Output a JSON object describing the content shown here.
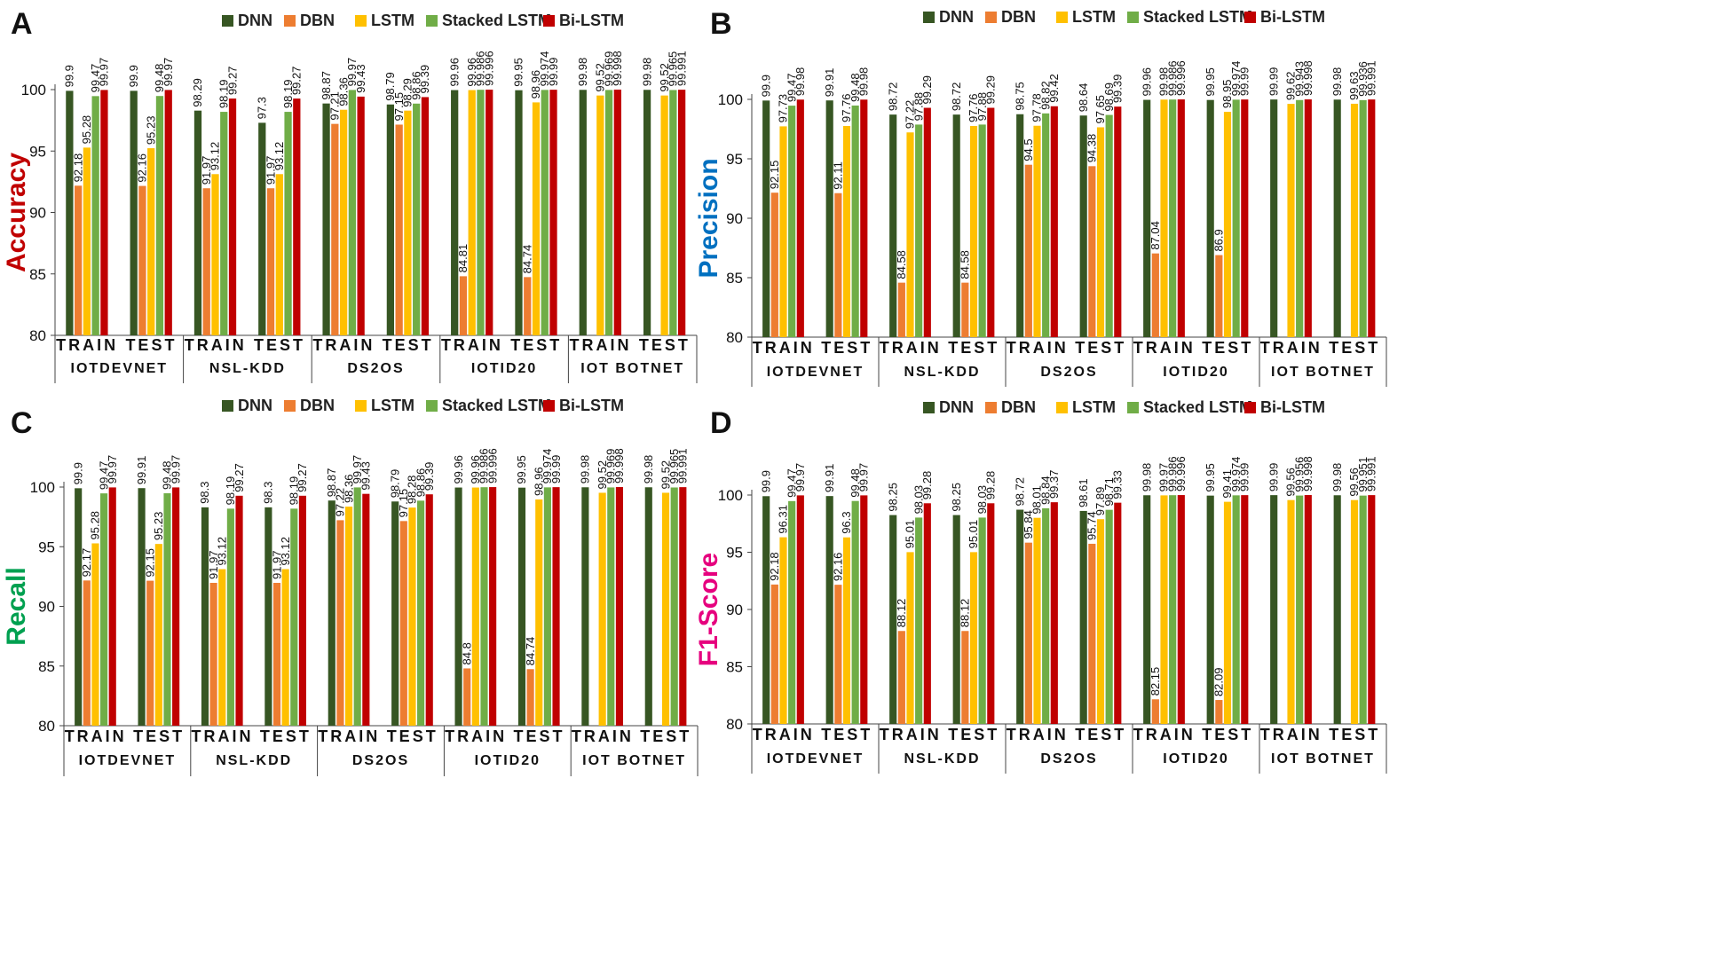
{
  "colors": {
    "DNN": "#375623",
    "DBN": "#ED7D31",
    "LSTM": "#FFC000",
    "Stacked LSTM": "#70AD47",
    "Bi-LSTM": "#C00000",
    "accuracy_label": "#C00000",
    "precision_label": "#0070C0",
    "recall_label": "#00A050",
    "f1_label": "#E6007E"
  },
  "chart_data": [
    {
      "panel": "A",
      "type": "bar",
      "ylabel": "Accuracy",
      "ylim": [
        80,
        100
      ],
      "yticks": [
        "80",
        "85",
        "90",
        "95",
        "100"
      ],
      "datasets": [
        "IOTDEVNET",
        "NSL-KDD",
        "DS2OS",
        "IOTID20",
        "IOT BOTNET"
      ],
      "splits": [
        "TRAIN",
        "TEST"
      ],
      "legend": [
        "DNN",
        "DBN",
        "LSTM",
        "Stacked LSTM",
        "Bi-LSTM"
      ],
      "series": [
        {
          "name": "DNN",
          "values": [
            99.9,
            99.9,
            98.29,
            97.3,
            98.87,
            98.79,
            99.96,
            99.95,
            99.98,
            99.98
          ],
          "labels": [
            "99.9",
            "99.9",
            "98.29",
            "97.3",
            "98.87",
            "98.79",
            "99.96",
            "99.95",
            "99.98",
            "99.98"
          ]
        },
        {
          "name": "DBN",
          "values": [
            92.18,
            92.16,
            91.97,
            91.97,
            97.21,
            97.15,
            84.81,
            84.74,
            null,
            null
          ],
          "labels": [
            "92.18",
            "92.16",
            "91.97",
            "91.97",
            "97.21",
            "97.15",
            "84.81",
            "84.74",
            "",
            ""
          ]
        },
        {
          "name": "LSTM",
          "values": [
            95.28,
            95.23,
            93.12,
            93.12,
            98.36,
            98.29,
            99.96,
            98.96,
            99.52,
            99.52
          ],
          "labels": [
            "95.28",
            "95.23",
            "93.12",
            "93.12",
            "98.36",
            "98.29",
            "99.96",
            "98.96",
            "99.52",
            "99.52"
          ]
        },
        {
          "name": "Stacked LSTM",
          "values": [
            99.47,
            99.48,
            98.19,
            98.19,
            99.97,
            98.86,
            99.986,
            99.974,
            99.969,
            99.965
          ],
          "labels": [
            "99.47",
            "99.48",
            "98.19",
            "98.19",
            "99.97",
            "98.86",
            "99.986",
            "99.974",
            "99.969",
            "99.965"
          ]
        },
        {
          "name": "Bi-LSTM",
          "values": [
            99.97,
            99.97,
            99.27,
            99.27,
            99.43,
            99.39,
            99.996,
            99.99,
            99.998,
            99.991
          ],
          "labels": [
            "99.97",
            "99.97",
            "99.27",
            "99.27",
            "99.43",
            "99.39",
            "99.996",
            "99.99",
            "99.998",
            "99.991"
          ]
        }
      ]
    },
    {
      "panel": "B",
      "type": "bar",
      "ylabel": "Precision",
      "ylim": [
        80,
        100
      ],
      "yticks": [
        "80",
        "85",
        "90",
        "95",
        "100"
      ],
      "datasets": [
        "IOTDEVNET",
        "NSL-KDD",
        "DS2OS",
        "IOTID20",
        "IOT BOTNET"
      ],
      "splits": [
        "TRAIN",
        "TEST"
      ],
      "legend": [
        "DNN",
        "DBN",
        "LSTM",
        "Stacked LSTM",
        "Bi-LSTM"
      ],
      "series": [
        {
          "name": "DNN",
          "values": [
            99.9,
            99.91,
            98.72,
            98.72,
            98.75,
            98.64,
            99.96,
            99.95,
            99.99,
            99.98
          ],
          "labels": [
            "99.9",
            "99.91",
            "98.72",
            "98.72",
            "98.75",
            "98.64",
            "99.96",
            "99.95",
            "99.99",
            "99.98"
          ]
        },
        {
          "name": "DBN",
          "values": [
            92.15,
            92.11,
            84.58,
            84.58,
            94.5,
            94.38,
            87.04,
            86.9,
            null,
            null
          ],
          "labels": [
            "92.15",
            "92.11",
            "84.58",
            "84.58",
            "94.5",
            "94.38",
            "87.04",
            "86.9",
            "",
            ""
          ]
        },
        {
          "name": "LSTM",
          "values": [
            97.73,
            97.76,
            97.22,
            97.76,
            97.78,
            97.65,
            99.98,
            98.95,
            99.62,
            99.63
          ],
          "labels": [
            "97.73",
            "97.76",
            "97.22",
            "97.76",
            "97.78",
            "97.65",
            "99.98",
            "98.95",
            "99.62",
            "99.63"
          ]
        },
        {
          "name": "Stacked LSTM",
          "values": [
            99.47,
            99.48,
            97.88,
            97.88,
            98.82,
            98.69,
            99.986,
            99.974,
            99.943,
            99.936
          ],
          "labels": [
            "99.47",
            "99.48",
            "97.88",
            "97.88",
            "98.82",
            "98.69",
            "99.986",
            "99.974",
            "99.943",
            "99.936"
          ]
        },
        {
          "name": "Bi-LSTM",
          "values": [
            99.98,
            99.98,
            99.29,
            99.29,
            99.42,
            99.39,
            99.996,
            99.99,
            99.998,
            99.991
          ],
          "labels": [
            "99.98",
            "99.98",
            "99.29",
            "99.29",
            "99.42",
            "99.39",
            "99.996",
            "99.99",
            "99.998",
            "99.991"
          ]
        }
      ]
    },
    {
      "panel": "C",
      "type": "bar",
      "ylabel": "Recall",
      "ylim": [
        80,
        100
      ],
      "yticks": [
        "80",
        "85",
        "90",
        "95",
        "100"
      ],
      "datasets": [
        "IOTDEVNET",
        "NSL-KDD",
        "DS2OS",
        "IOTID20",
        "IOT BOTNET"
      ],
      "splits": [
        "TRAIN",
        "TEST"
      ],
      "legend": [
        "DNN",
        "DBN",
        "LSTM",
        "Stacked LSTM",
        "Bi-LSTM"
      ],
      "series": [
        {
          "name": "DNN",
          "values": [
            99.9,
            99.91,
            98.3,
            98.3,
            98.87,
            98.79,
            99.96,
            99.95,
            99.98,
            99.98
          ],
          "labels": [
            "99.9",
            "99.91",
            "98.3",
            "98.3",
            "98.87",
            "98.79",
            "99.96",
            "99.95",
            "99.98",
            "99.98"
          ]
        },
        {
          "name": "DBN",
          "values": [
            92.17,
            92.15,
            91.97,
            91.97,
            97.22,
            97.15,
            84.8,
            84.74,
            null,
            null
          ],
          "labels": [
            "92.17",
            "92.15",
            "91.97",
            "91.97",
            "97.22",
            "97.15",
            "84.8",
            "84.74",
            "",
            ""
          ]
        },
        {
          "name": "LSTM",
          "values": [
            95.28,
            95.23,
            93.12,
            93.12,
            98.36,
            98.28,
            99.96,
            98.96,
            99.52,
            99.52
          ],
          "labels": [
            "95.28",
            "95.23",
            "93.12",
            "93.12",
            "98.36",
            "98.28",
            "99.96",
            "98.96",
            "99.52",
            "99.52"
          ]
        },
        {
          "name": "Stacked LSTM",
          "values": [
            99.47,
            99.48,
            98.19,
            98.19,
            99.97,
            98.86,
            99.986,
            99.974,
            99.969,
            99.965
          ],
          "labels": [
            "99.47",
            "99.48",
            "98.19",
            "98.19",
            "99.97",
            "98.86",
            "99.986",
            "99.974",
            "99.969",
            "99.965"
          ]
        },
        {
          "name": "Bi-LSTM",
          "values": [
            99.97,
            99.97,
            99.27,
            99.27,
            99.43,
            99.39,
            99.996,
            99.99,
            99.998,
            99.991
          ],
          "labels": [
            "99.97",
            "99.97",
            "99.27",
            "99.27",
            "99.43",
            "99.39",
            "99.996",
            "99.99",
            "99.998",
            "99.991"
          ]
        }
      ]
    },
    {
      "panel": "D",
      "type": "bar",
      "ylabel": "F1-Score",
      "ylim": [
        80,
        100
      ],
      "yticks": [
        "80",
        "85",
        "90",
        "95",
        "100"
      ],
      "datasets": [
        "IOTDEVNET",
        "NSL-KDD",
        "DS2OS",
        "IOTID20",
        "IOT BOTNET"
      ],
      "splits": [
        "TRAIN",
        "TEST"
      ],
      "legend": [
        "DNN",
        "DBN",
        "LSTM",
        "Stacked LSTM",
        "Bi-LSTM"
      ],
      "series": [
        {
          "name": "DNN",
          "values": [
            99.9,
            99.91,
            98.25,
            98.25,
            98.72,
            98.61,
            99.98,
            99.95,
            99.99,
            99.98
          ],
          "labels": [
            "99.9",
            "99.91",
            "98.25",
            "98.25",
            "98.72",
            "98.61",
            "99.98",
            "99.95",
            "99.99",
            "99.98"
          ]
        },
        {
          "name": "DBN",
          "values": [
            92.18,
            92.16,
            88.12,
            88.12,
            95.84,
            95.74,
            82.15,
            82.09,
            null,
            null
          ],
          "labels": [
            "92.18",
            "92.16",
            "88.12",
            "88.12",
            "95.84",
            "95.74",
            "82.15",
            "82.09",
            "",
            ""
          ]
        },
        {
          "name": "LSTM",
          "values": [
            96.31,
            96.3,
            95.01,
            95.01,
            98.01,
            97.89,
            99.97,
            99.41,
            99.56,
            99.56
          ],
          "labels": [
            "96.31",
            "96.3",
            "95.01",
            "95.01",
            "98.01",
            "97.89",
            "99.97",
            "99.41",
            "99.56",
            "99.56"
          ]
        },
        {
          "name": "Stacked LSTM",
          "values": [
            99.47,
            99.48,
            98.03,
            98.03,
            98.84,
            98.71,
            99.986,
            99.974,
            99.956,
            99.951
          ],
          "labels": [
            "99.47",
            "99.48",
            "98.03",
            "98.03",
            "98.84",
            "98.71",
            "99.986",
            "99.974",
            "99.956",
            "99.951"
          ]
        },
        {
          "name": "Bi-LSTM",
          "values": [
            99.97,
            99.97,
            99.28,
            99.28,
            99.37,
            99.33,
            99.996,
            99.99,
            99.998,
            99.991
          ],
          "labels": [
            "99.97",
            "99.97",
            "99.28",
            "99.28",
            "99.37",
            "99.33",
            "99.996",
            "99.99",
            "99.998",
            "99.991"
          ]
        }
      ]
    }
  ]
}
